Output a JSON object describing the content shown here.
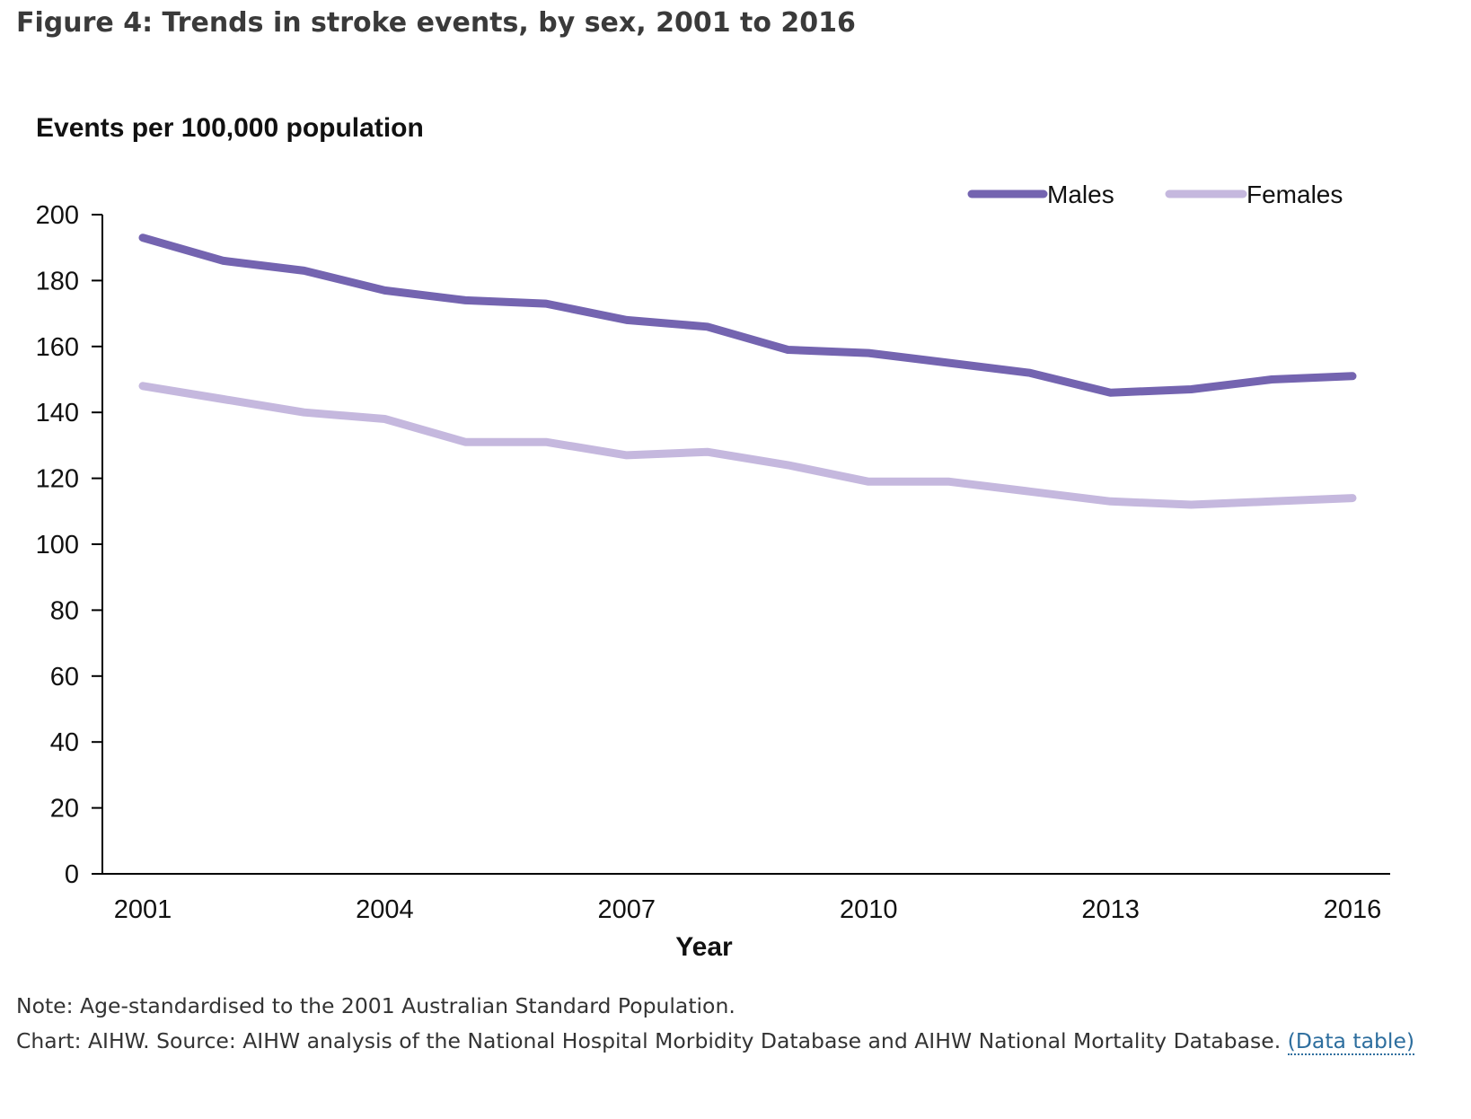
{
  "figure": {
    "title": "Figure 4: Trends in stroke events, by sex, 2001 to 2016"
  },
  "chart_data": {
    "type": "line",
    "title": "",
    "ylabel": "Events per 100,000 population",
    "xlabel": "Year",
    "x": [
      2001,
      2002,
      2003,
      2004,
      2005,
      2006,
      2007,
      2008,
      2009,
      2010,
      2011,
      2012,
      2013,
      2014,
      2015,
      2016
    ],
    "x_ticks": [
      "2001",
      "2004",
      "2007",
      "2010",
      "2013",
      "2016"
    ],
    "ylim": [
      0,
      200
    ],
    "y_ticks": [
      "0",
      "20",
      "40",
      "60",
      "80",
      "100",
      "120",
      "140",
      "160",
      "180",
      "200"
    ],
    "grid": false,
    "legend_position": "top-right",
    "series": [
      {
        "name": "Males",
        "color": "#7464b0",
        "values": [
          193,
          186,
          183,
          177,
          174,
          173,
          168,
          166,
          159,
          158,
          155,
          152,
          146,
          147,
          150,
          151
        ]
      },
      {
        "name": "Females",
        "color": "#c5b8de",
        "values": [
          148,
          144,
          140,
          138,
          131,
          131,
          127,
          128,
          124,
          119,
          119,
          116,
          113,
          112,
          113,
          114
        ]
      }
    ]
  },
  "footer": {
    "note": "Note: Age-standardised to the 2001 Australian Standard Population.",
    "source": "Chart: AIHW. Source: AIHW analysis of the National Hospital Morbidity Database and AIHW National Mortality Database.",
    "data_table_link": "(Data table)"
  }
}
